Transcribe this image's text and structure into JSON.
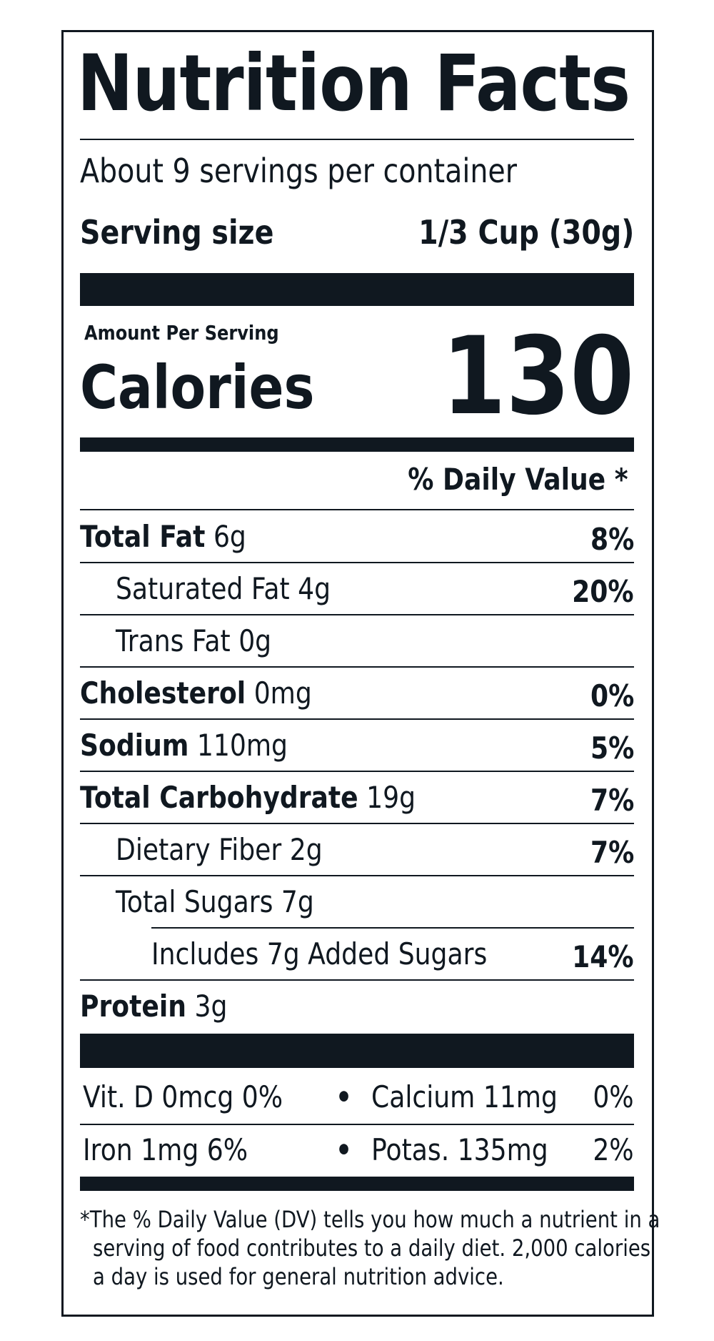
{
  "header": {
    "title": "Nutrition Facts",
    "servings": "About 9 servings per container",
    "serving_size_label": "Serving size",
    "serving_size_value": "1/3 Cup (30g)"
  },
  "calories": {
    "amount_label": "Amount Per Serving",
    "label": "Calories",
    "value": "130"
  },
  "dv_header": "% Daily Value *",
  "nutrients": [
    {
      "name": "Total Fat",
      "amount": "6g",
      "dv": "8%"
    },
    {
      "name": "Saturated Fat",
      "amount": "4g",
      "dv": "20%"
    },
    {
      "name": "Trans Fat",
      "amount": "0g",
      "dv": ""
    },
    {
      "name": "Cholesterol",
      "amount": "0mg",
      "dv": "0%"
    },
    {
      "name": "Sodium",
      "amount": "110mg",
      "dv": "5%"
    },
    {
      "name": "Total Carbohydrate",
      "amount": "19g",
      "dv": "7%"
    },
    {
      "name": "Dietary Fiber",
      "amount": "2g",
      "dv": "7%"
    },
    {
      "name": "Total Sugars",
      "amount": "7g",
      "dv": ""
    },
    {
      "name": "Includes 7g Added Sugars",
      "amount": "",
      "dv": "14%"
    },
    {
      "name": "Protein",
      "amount": "3g",
      "dv": ""
    }
  ],
  "vitamins": [
    {
      "left": "Vit. D 0mcg 0%",
      "bullet": "•",
      "right_name": "Calcium 11mg",
      "right_dv": "0%"
    },
    {
      "left": "Iron 1mg 6%",
      "bullet": "•",
      "right_name": "Potas. 135mg",
      "right_dv": "2%"
    }
  ],
  "footnote": {
    "line1": "*The % Daily Value (DV) tells you how much a nutrient in a",
    "line2": "serving of food contributes to a daily diet. 2,000 calories",
    "line3": "a day is used for general nutrition advice."
  },
  "colors": {
    "ink": "#101820",
    "background": "#ffffff"
  }
}
